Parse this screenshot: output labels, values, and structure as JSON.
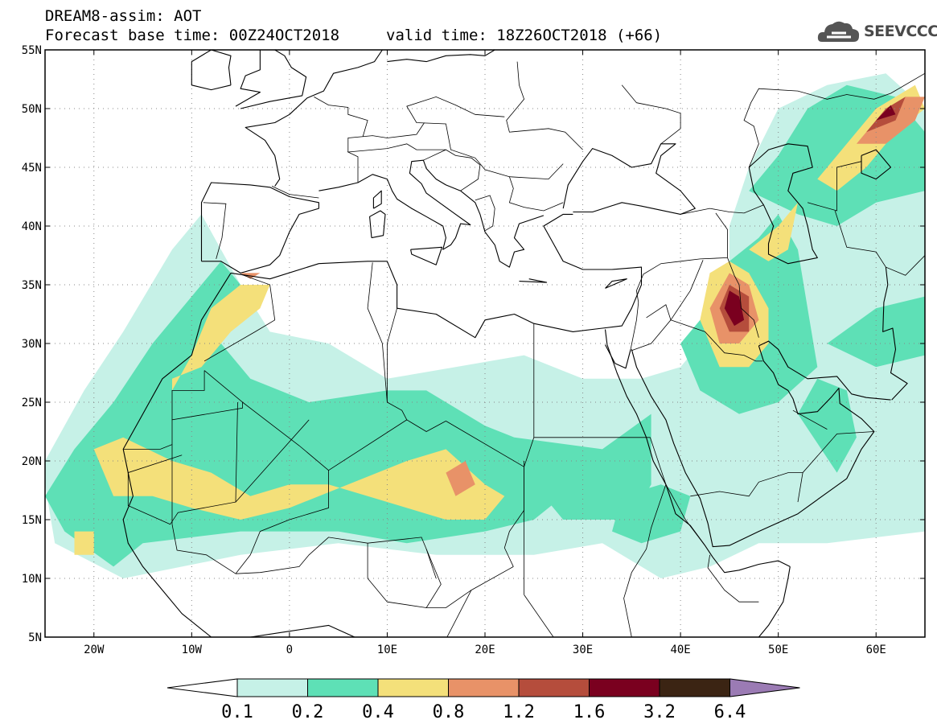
{
  "title": {
    "line1": "DREAM8-assim: AOT",
    "line2": "Forecast base time: 00Z24OCT2018",
    "valid": "valid time: 18Z26OCT2018 (+66)"
  },
  "logo": {
    "text": "SEEVCCC",
    "icon": "cloud-icon"
  },
  "map": {
    "projection": "lat-lon",
    "lon_range": [
      -25,
      65
    ],
    "lat_range": [
      5,
      55
    ],
    "grid": "dotted",
    "lat_labels": [
      "55N",
      "50N",
      "45N",
      "40N",
      "35N",
      "30N",
      "25N",
      "20N",
      "15N",
      "10N",
      "5N"
    ],
    "lon_labels": [
      "20W",
      "10W",
      "0",
      "10E",
      "20E",
      "30E",
      "40E",
      "50E",
      "60E"
    ]
  },
  "colorbar": {
    "labels": [
      "0.1",
      "0.2",
      "0.4",
      "0.8",
      "1.2",
      "1.6",
      "3.2",
      "6.4"
    ],
    "colors": [
      "#c6f1e7",
      "#5ee0b6",
      "#f4e07a",
      "#e89268",
      "#b54d3c",
      "#7a001f",
      "#3b2413",
      "#9b7bb4"
    ],
    "under_color": "#ffffff",
    "over_color": "#9b7bb4"
  },
  "chart_data": {
    "type": "heatmap",
    "title": "DREAM8-assim: AOT",
    "xlabel": "",
    "ylabel": "",
    "xlim": [
      -25,
      65
    ],
    "ylim": [
      5,
      55
    ],
    "levels": [
      0.1,
      0.2,
      0.4,
      0.8,
      1.2,
      1.6,
      3.2,
      6.4
    ],
    "regions": [
      {
        "level": 0.1,
        "polygons": [
          [
            [
              -25,
              18
            ],
            [
              -24,
              13
            ],
            [
              -17,
              10
            ],
            [
              -5,
              12
            ],
            [
              5,
              13
            ],
            [
              15,
              12
            ],
            [
              25,
              12
            ],
            [
              32,
              13
            ],
            [
              38,
              10
            ],
            [
              43,
              11
            ],
            [
              48,
              13
            ],
            [
              55,
              13
            ],
            [
              65,
              14
            ],
            [
              65,
              50
            ],
            [
              61,
              53
            ],
            [
              55,
              52
            ],
            [
              50,
              50
            ],
            [
              47,
              45
            ],
            [
              45,
              40
            ],
            [
              45,
              36
            ],
            [
              43,
              31
            ],
            [
              40,
              28
            ],
            [
              36,
              27
            ],
            [
              30,
              27
            ],
            [
              24,
              29
            ],
            [
              17,
              28
            ],
            [
              10,
              27
            ],
            [
              4,
              30
            ],
            [
              -2,
              31
            ],
            [
              -5,
              35
            ],
            [
              -7,
              38
            ],
            [
              -9,
              41
            ],
            [
              -12,
              38
            ],
            [
              -17,
              31
            ],
            [
              -21,
              26
            ],
            [
              -25,
              20
            ]
          ]
        ]
      },
      {
        "level": 0.2,
        "polygons": [
          [
            [
              -25,
              17
            ],
            [
              -23,
              14
            ],
            [
              -18,
              11
            ],
            [
              -15,
              13
            ],
            [
              -5,
              14
            ],
            [
              5,
              14
            ],
            [
              12,
              13
            ],
            [
              20,
              14
            ],
            [
              25,
              15
            ],
            [
              28,
              17
            ],
            [
              30,
              19
            ],
            [
              26,
              21
            ],
            [
              20,
              23
            ],
            [
              14,
              26
            ],
            [
              10,
              26
            ],
            [
              2,
              25
            ],
            [
              -4,
              27
            ],
            [
              -7,
              30
            ],
            [
              -5,
              35
            ],
            [
              -7,
              37
            ],
            [
              -10,
              34
            ],
            [
              -14,
              30
            ],
            [
              -18,
              25
            ],
            [
              -22,
              21
            ]
          ],
          [
            [
              23,
              22
            ],
            [
              32,
              21
            ],
            [
              37,
              24
            ],
            [
              37,
              18
            ],
            [
              35,
              15
            ],
            [
              28,
              15
            ],
            [
              25,
              18
            ]
          ],
          [
            [
              33,
              14
            ],
            [
              36,
              13
            ],
            [
              40,
              14
            ],
            [
              41,
              17
            ],
            [
              38,
              18
            ],
            [
              34,
              17
            ]
          ],
          [
            [
              40,
              30
            ],
            [
              42,
              26
            ],
            [
              46,
              24
            ],
            [
              50,
              25
            ],
            [
              54,
              28
            ],
            [
              53,
              33
            ],
            [
              52,
              38
            ],
            [
              50,
              41
            ],
            [
              48,
              39
            ],
            [
              45,
              37
            ],
            [
              43,
              33
            ]
          ],
          [
            [
              52,
              24
            ],
            [
              56,
              19
            ],
            [
              58,
              22
            ],
            [
              57,
              26
            ],
            [
              54,
              27
            ]
          ],
          [
            [
              47,
              43
            ],
            [
              50,
              46
            ],
            [
              53,
              50
            ],
            [
              57,
              52
            ],
            [
              62,
              51
            ],
            [
              65,
              48
            ],
            [
              65,
              43
            ],
            [
              60,
              42
            ],
            [
              56,
              40
            ],
            [
              52,
              41
            ]
          ],
          [
            [
              55,
              30
            ],
            [
              60,
              33
            ],
            [
              65,
              34
            ],
            [
              65,
              29
            ],
            [
              60,
              28
            ]
          ]
        ]
      },
      {
        "level": 0.4,
        "polygons": [
          [
            [
              -20,
              21
            ],
            [
              -18,
              17
            ],
            [
              -14,
              17
            ],
            [
              -10,
              16
            ],
            [
              -5,
              15
            ],
            [
              0,
              16
            ],
            [
              6,
              18
            ],
            [
              12,
              20
            ],
            [
              16,
              21
            ],
            [
              20,
              18
            ],
            [
              22,
              17
            ],
            [
              20,
              15
            ],
            [
              16,
              15
            ],
            [
              12,
              16
            ],
            [
              8,
              17
            ],
            [
              4,
              18
            ],
            [
              0,
              18
            ],
            [
              -4,
              17
            ],
            [
              -8,
              19
            ],
            [
              -12,
              20
            ],
            [
              -17,
              22
            ]
          ],
          [
            [
              -12,
              26
            ],
            [
              -10,
              29
            ],
            [
              -8,
              33
            ],
            [
              -5,
              35
            ],
            [
              -2,
              35
            ],
            [
              -3,
              33
            ],
            [
              -6,
              31
            ],
            [
              -9,
              28
            ],
            [
              -12,
              27
            ]
          ],
          [
            [
              -22,
              12
            ],
            [
              -20,
              12
            ],
            [
              -20,
              14
            ],
            [
              -22,
              14
            ]
          ],
          [
            [
              42,
              32
            ],
            [
              44,
              28
            ],
            [
              47,
              28
            ],
            [
              49,
              30
            ],
            [
              49,
              33
            ],
            [
              47,
              36
            ],
            [
              45,
              37
            ],
            [
              43,
              36
            ]
          ],
          [
            [
              47,
              38
            ],
            [
              50,
              40
            ],
            [
              52,
              42
            ],
            [
              51,
              38
            ],
            [
              49,
              37
            ]
          ],
          [
            [
              54,
              44
            ],
            [
              57,
              47
            ],
            [
              60,
              50
            ],
            [
              64,
              52
            ],
            [
              65,
              50
            ],
            [
              62,
              48
            ],
            [
              59,
              45
            ],
            [
              56,
              43
            ]
          ]
        ]
      },
      {
        "level": 0.8,
        "polygons": [
          [
            [
              16,
              19
            ],
            [
              17,
              17
            ],
            [
              19,
              18
            ],
            [
              18,
              20
            ]
          ],
          [
            [
              43,
              33
            ],
            [
              44,
              30
            ],
            [
              46,
              30
            ],
            [
              48,
              32
            ],
            [
              47,
              35
            ],
            [
              45,
              36
            ]
          ],
          [
            [
              58,
              47
            ],
            [
              60,
              49
            ],
            [
              63,
              51
            ],
            [
              65,
              51
            ],
            [
              64,
              49
            ],
            [
              61,
              47
            ]
          ],
          [
            [
              -5,
              36
            ],
            [
              -4,
              35.5
            ],
            [
              -3,
              36
            ]
          ]
        ]
      },
      {
        "level": 1.2,
        "polygons": [
          [
            [
              44,
              33
            ],
            [
              45,
              31
            ],
            [
              47,
              31
            ],
            [
              47,
              34
            ],
            [
              45,
              35
            ]
          ],
          [
            [
              59,
              48
            ],
            [
              61,
              50
            ],
            [
              63,
              51
            ],
            [
              62,
              49
            ]
          ]
        ]
      },
      {
        "level": 1.6,
        "polygons": [
          [
            [
              44.5,
              33
            ],
            [
              45.5,
              31.5
            ],
            [
              46.5,
              32
            ],
            [
              46,
              34
            ],
            [
              45,
              34.5
            ]
          ],
          [
            [
              60,
              49
            ],
            [
              61.5,
              50.3
            ],
            [
              62,
              49.5
            ]
          ]
        ]
      }
    ]
  }
}
